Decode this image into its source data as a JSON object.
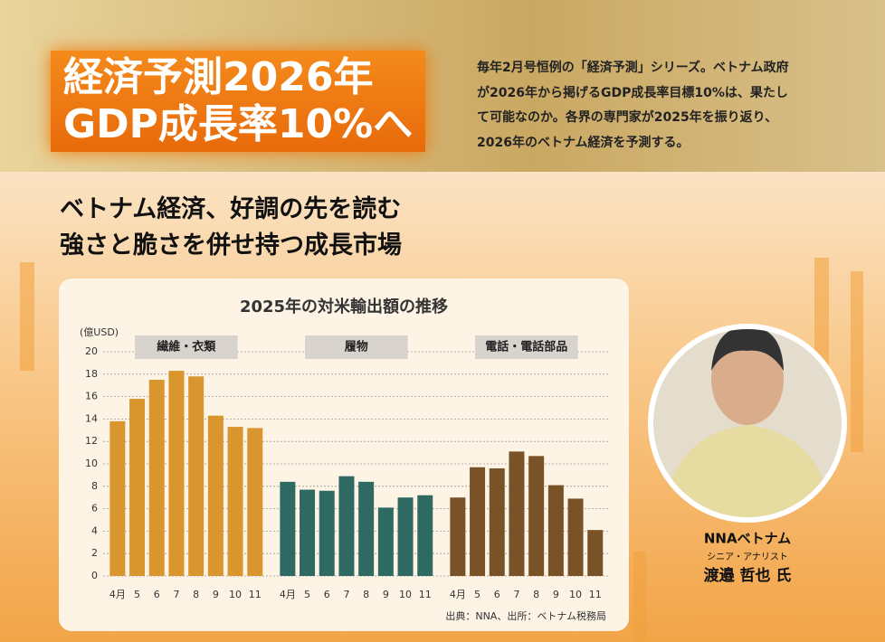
{
  "header": {
    "headline": [
      "経済予測2026年",
      "GDP成長率10%へ"
    ],
    "intro": [
      "毎年2月号恒例の「経済予測」シリーズ。ベトナム政府",
      "が2026年から掲げるGDP成長率目標10%は、果たし",
      "て可能なのか。各界の専門家が2025年を振り返り、",
      "2026年のベトナム経済を予測する。"
    ]
  },
  "subtitle": [
    "ベトナム経済、好調の先を読む",
    "強さと脆さを併せ持つ成長市場"
  ],
  "chart_data": {
    "type": "bar",
    "title": "2025年の対米輸出額の推移",
    "y_label": "(億USD)",
    "ylim": [
      0,
      20
    ],
    "yticks": [
      0,
      2,
      4,
      6,
      8,
      10,
      12,
      14,
      16,
      18,
      20
    ],
    "grid": true,
    "panels": [
      {
        "name": "繊維・衣類",
        "color": "#d9952e",
        "categories": [
          "4月",
          "5",
          "6",
          "7",
          "8",
          "9",
          "10",
          "11"
        ],
        "values": [
          13.8,
          15.8,
          17.5,
          18.3,
          17.8,
          14.3,
          13.3,
          13.2
        ]
      },
      {
        "name": "履物",
        "color": "#2e6a62",
        "categories": [
          "4月",
          "5",
          "6",
          "7",
          "8",
          "9",
          "10",
          "11"
        ],
        "values": [
          8.4,
          7.7,
          7.6,
          8.9,
          8.4,
          6.1,
          7.0,
          7.2
        ]
      },
      {
        "name": "電話・電話部品",
        "color": "#7a5228",
        "categories": [
          "4月",
          "5",
          "6",
          "7",
          "8",
          "9",
          "10",
          "11"
        ],
        "values": [
          7.0,
          9.7,
          9.6,
          11.1,
          10.7,
          8.1,
          6.9,
          4.1
        ]
      }
    ],
    "source": "出典：NNA、出所：ベトナム税務局"
  },
  "person": {
    "company": "NNAベトナム",
    "role": "シニア・アナリスト",
    "name": "渡邉 哲也 氏"
  }
}
